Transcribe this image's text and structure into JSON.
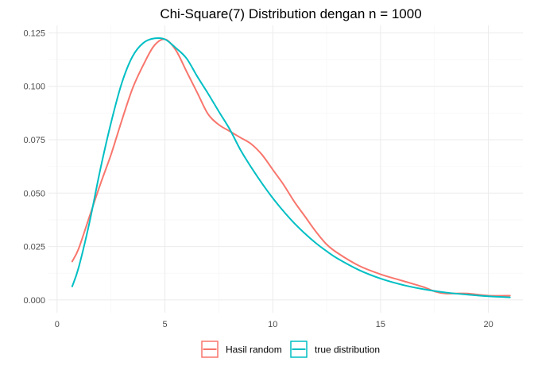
{
  "chart_data": {
    "type": "line",
    "title": "Chi-Square(7) Distribution dengan n = 1000",
    "xlabel": "",
    "ylabel": "",
    "xlim": [
      -0.4,
      21.6
    ],
    "ylim": [
      -0.006,
      0.1285
    ],
    "x_ticks": [
      0,
      5,
      10,
      15,
      20
    ],
    "y_ticks": [
      0.0,
      0.025,
      0.05,
      0.075,
      0.1,
      0.125
    ],
    "x_tick_labels": [
      "0",
      "5",
      "10",
      "15",
      "20"
    ],
    "y_tick_labels": [
      "0.000",
      "0.025",
      "0.050",
      "0.075",
      "0.100",
      "0.125"
    ],
    "grid": true,
    "legend_position": "bottom",
    "series": [
      {
        "name": "Hasil random",
        "color": "#F8766D",
        "x": [
          0.7,
          1.0,
          1.5,
          2.0,
          2.5,
          3.0,
          3.5,
          4.0,
          4.5,
          5.0,
          5.5,
          6.0,
          6.5,
          7.0,
          7.5,
          8.0,
          8.5,
          9.0,
          9.5,
          10.0,
          10.5,
          11.0,
          11.5,
          12.0,
          12.5,
          13.0,
          14.0,
          15.0,
          16.0,
          17.0,
          17.5,
          18.0,
          19.0,
          20.0,
          21.0
        ],
        "y": [
          0.018,
          0.024,
          0.039,
          0.054,
          0.068,
          0.084,
          0.099,
          0.11,
          0.119,
          0.122,
          0.117,
          0.107,
          0.097,
          0.087,
          0.082,
          0.079,
          0.076,
          0.073,
          0.068,
          0.061,
          0.054,
          0.046,
          0.039,
          0.032,
          0.026,
          0.022,
          0.016,
          0.012,
          0.009,
          0.006,
          0.004,
          0.003,
          0.003,
          0.002,
          0.002
        ]
      },
      {
        "name": "true distribution",
        "color": "#00BFC4",
        "x": [
          0.7,
          1.0,
          1.5,
          2.0,
          2.5,
          3.0,
          3.5,
          4.0,
          4.5,
          5.0,
          5.5,
          6.0,
          6.5,
          7.0,
          7.5,
          8.0,
          8.5,
          9.0,
          9.5,
          10.0,
          10.5,
          11.0,
          11.5,
          12.0,
          12.5,
          13.0,
          14.0,
          15.0,
          16.0,
          17.0,
          18.0,
          19.0,
          20.0,
          21.0
        ],
        "y": [
          0.0063,
          0.0152,
          0.0362,
          0.0609,
          0.0829,
          0.1015,
          0.114,
          0.1203,
          0.1224,
          0.122,
          0.118,
          0.1131,
          0.1046,
          0.0966,
          0.0882,
          0.08,
          0.0703,
          0.0621,
          0.0546,
          0.0477,
          0.0415,
          0.0359,
          0.031,
          0.0266,
          0.0228,
          0.0194,
          0.014,
          0.01,
          0.0071,
          0.005,
          0.0035,
          0.0025,
          0.0017,
          0.0012
        ]
      }
    ]
  }
}
